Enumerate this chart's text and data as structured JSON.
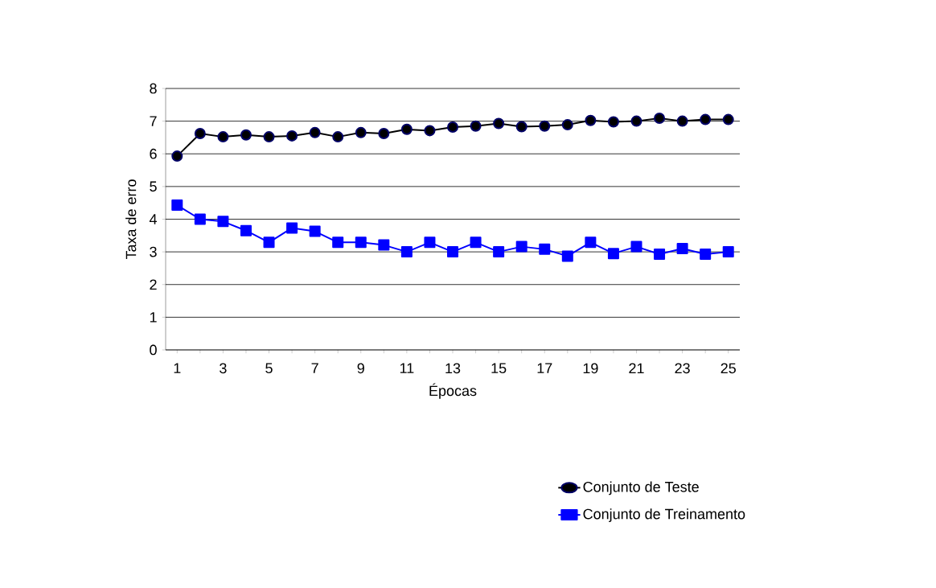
{
  "chart_data": {
    "type": "line",
    "xlabel": "Épocas",
    "ylabel": "Taxa de erro",
    "categories": [
      "1",
      null,
      "3",
      null,
      "5",
      null,
      "7",
      null,
      "9",
      null,
      "11",
      null,
      "13",
      null,
      "15",
      null,
      "17",
      null,
      "19",
      null,
      "21",
      null,
      "23",
      null,
      "25"
    ],
    "series": [
      {
        "name": "Conjunto de Teste",
        "color": "#000000",
        "marker": "circle",
        "values": [
          5.93,
          6.62,
          6.52,
          6.58,
          6.52,
          6.55,
          6.65,
          6.52,
          6.65,
          6.62,
          6.75,
          6.71,
          6.82,
          6.85,
          6.93,
          6.83,
          6.85,
          6.89,
          7.02,
          6.98,
          7.0,
          7.09,
          7.0,
          7.05,
          7.05
        ]
      },
      {
        "name": "Conjunto de Treinamento",
        "color": "#0000ff",
        "marker": "square",
        "values": [
          4.43,
          4.0,
          3.93,
          3.65,
          3.29,
          3.73,
          3.63,
          3.29,
          3.29,
          3.21,
          3.0,
          3.29,
          3.0,
          3.29,
          3.0,
          3.16,
          3.08,
          2.87,
          3.29,
          2.95,
          3.16,
          2.93,
          3.1,
          2.93,
          3.0
        ]
      }
    ],
    "ylim": [
      0,
      8
    ],
    "yticks": [
      0,
      1,
      2,
      3,
      4,
      5,
      6,
      7,
      8
    ],
    "grid": "y",
    "legend": "bottom right",
    "line_style": "solid"
  }
}
